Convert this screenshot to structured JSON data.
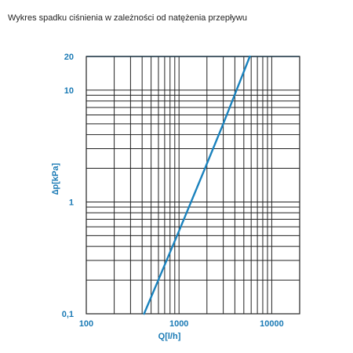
{
  "title": "Wykres spadku ciśnienia w zależności od natężenia przepływu",
  "colors": {
    "accent": "#1a7ab5",
    "grid": "#222222",
    "series": "#1a82bd"
  },
  "chart_data": {
    "type": "line",
    "title": "Wykres spadku ciśnienia w zależności od natężenia przepływu",
    "xlabel": "Q[l/h]",
    "ylabel": "∆p[kPa]",
    "xscale": "log",
    "yscale": "log",
    "xlim": [
      100,
      20000
    ],
    "ylim": [
      0.1,
      20
    ],
    "grid": true,
    "x_tick_labels": [
      {
        "value": 100,
        "label": "100"
      },
      {
        "value": 1000,
        "label": "1000"
      },
      {
        "value": 10000,
        "label": "10000"
      }
    ],
    "y_tick_labels": [
      {
        "value": 0.1,
        "label": "0,1"
      },
      {
        "value": 1,
        "label": "1"
      },
      {
        "value": 10,
        "label": "10"
      },
      {
        "value": 20,
        "label": "20"
      }
    ],
    "series": [
      {
        "x": [
          420,
          1000,
          2000,
          3000,
          5800
        ],
        "y": [
          0.1,
          0.55,
          2.2,
          5.0,
          20
        ]
      }
    ]
  }
}
